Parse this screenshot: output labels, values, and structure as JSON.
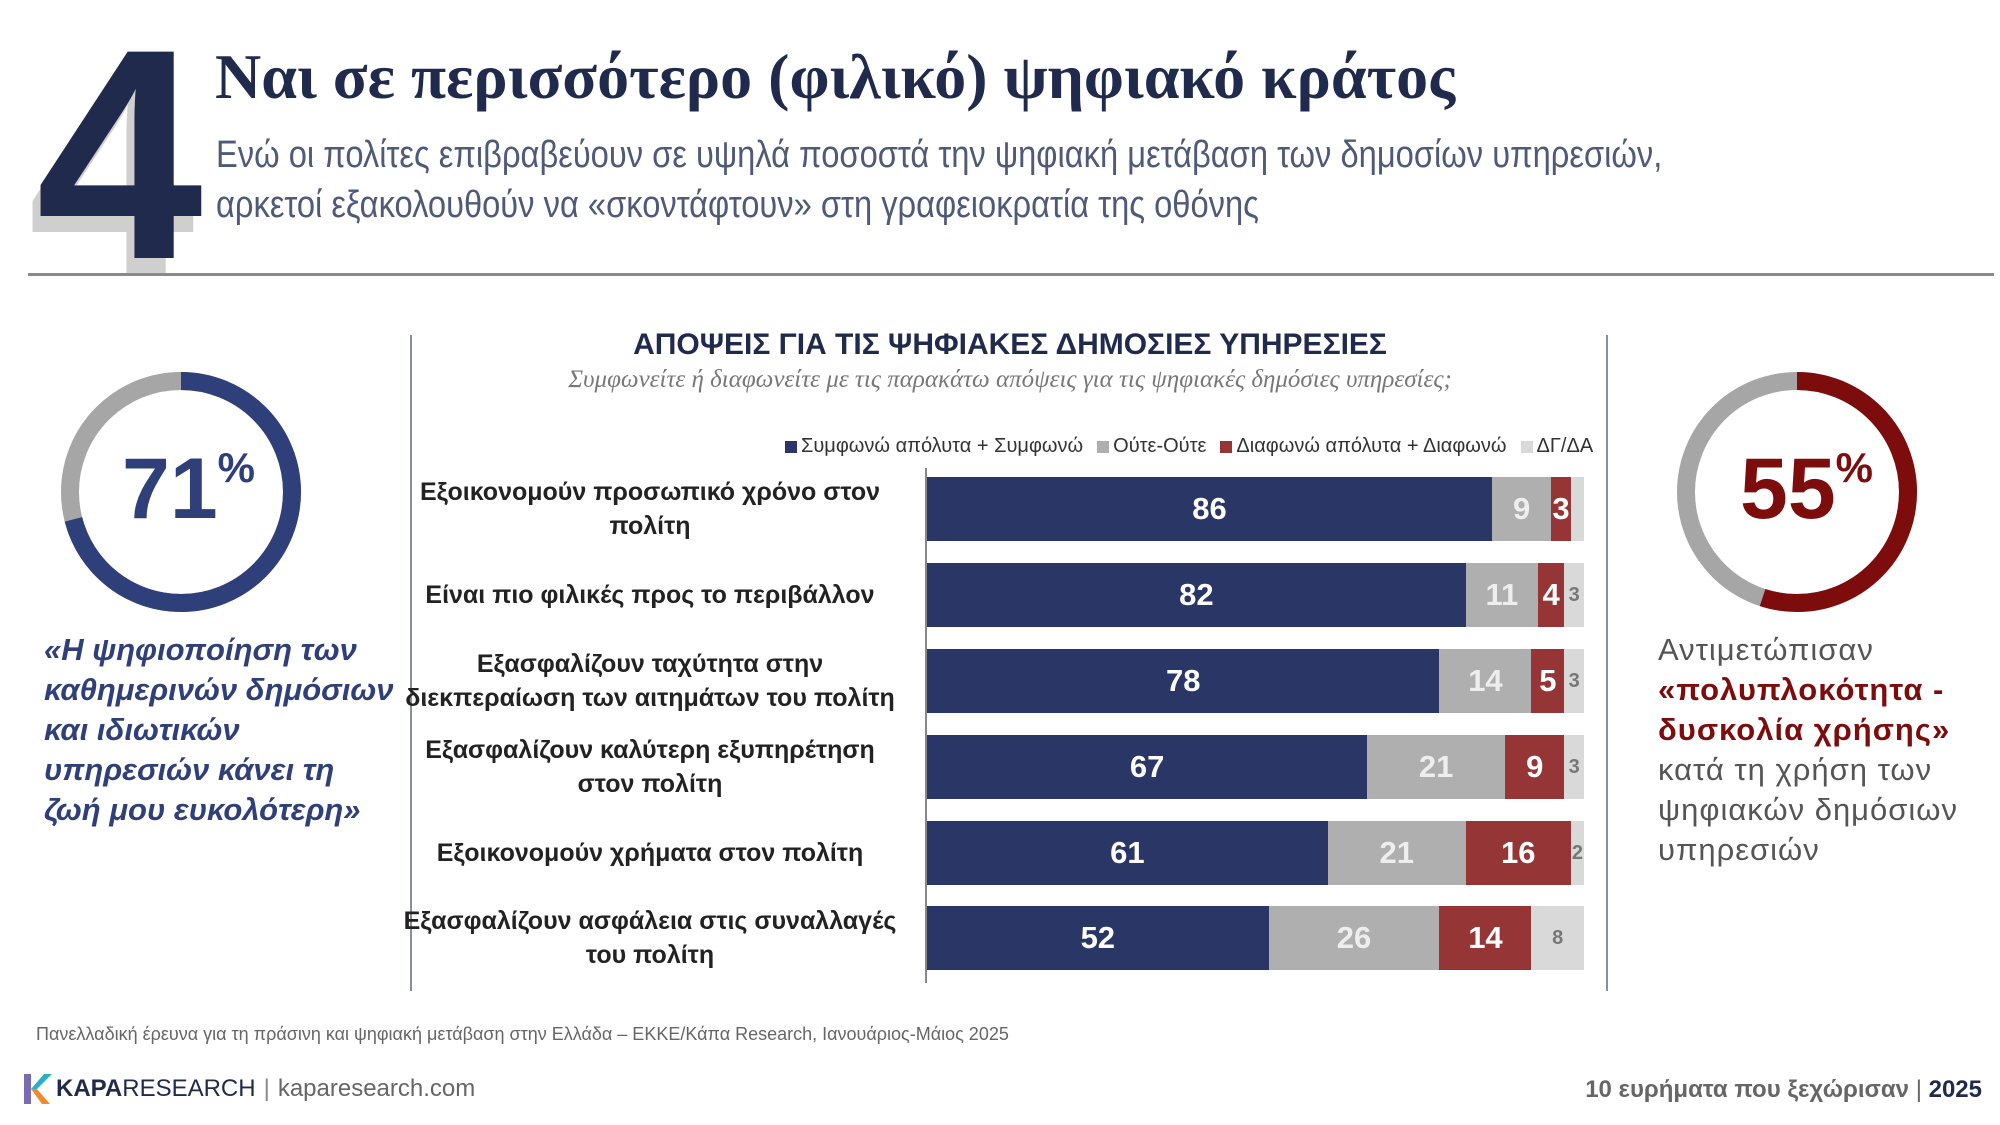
{
  "header": {
    "number": "4",
    "title": "Ναι σε περισσότερο (φιλικό) ψηφιακό κράτος",
    "subtitle": "Ενώ οι πολίτες επιβραβεύουν σε υψηλά ποσοστά την ψηφιακή μετάβαση των δημοσίων υπηρεσιών, αρκετοί εξακολουθούν να «σκοντάφτουν» στη γραφειοκρατία της οθόνης"
  },
  "left_stat": {
    "value": "71",
    "unit": "%",
    "fraction": 0.71,
    "color": "#2f3f7a",
    "quote": "«Η ψηφιοποίηση των καθημερινών δημόσιων και ιδιωτικών υπηρεσιών κάνει τη ζωή μου ευκολότερη»"
  },
  "right_stat": {
    "value": "55",
    "unit": "%",
    "fraction": 0.55,
    "color": "#7d0c0c",
    "text_before": "Αντιμετώπισαν",
    "text_bold": "«πολυπλοκότητα - δυσκολία χρήσης»",
    "text_after": "κατά τη χρήση των ψηφιακών δημόσιων υπηρεσιών"
  },
  "chart_data": {
    "type": "bar",
    "orientation": "horizontal-stacked",
    "title": "ΑΠΟΨΕΙΣ ΓΙΑ ΤΙΣ ΨΗΦΙΑΚΕΣ ΔΗΜΟΣΙΕΣ ΥΠΗΡΕΣΙΕΣ",
    "subtitle": "Συμφωνείτε ή διαφωνείτε με τις παρακάτω απόψεις για τις ψηφιακές δημόσιες υπηρεσίες;",
    "legend_position": "top",
    "categories": [
      "Εξοικονομούν προσωπικό χρόνο στον πολίτη",
      "Είναι πιο φιλικές προς το περιβάλλον",
      "Εξασφαλίζουν ταχύτητα στην διεκπεραίωση των αιτημάτων του πολίτη",
      "Εξασφαλίζουν καλύτερη εξυπηρέτηση στον πολίτη",
      "Εξοικονομούν χρήματα στον πολίτη",
      "Εξασφαλίζουν ασφάλεια στις συναλλαγές του πολίτη"
    ],
    "series": [
      {
        "name": "Συμφωνώ απόλυτα + Συμφωνώ",
        "color": "#2a3766",
        "values": [
          86,
          82,
          78,
          67,
          61,
          52
        ]
      },
      {
        "name": "Ούτε-Ούτε",
        "color": "#afafaf",
        "values": [
          9,
          11,
          14,
          21,
          21,
          26
        ]
      },
      {
        "name": "Διαφωνώ απόλυτα + Διαφωνώ",
        "color": "#963535",
        "values": [
          3,
          4,
          5,
          9,
          16,
          14
        ]
      },
      {
        "name": "ΔΓ/ΔΑ",
        "color": "#d9d9d9",
        "values": [
          2,
          3,
          3,
          3,
          2,
          8
        ],
        "labels_shown": [
          false,
          true,
          true,
          true,
          true,
          true
        ]
      }
    ]
  },
  "footer": {
    "source": "Πανελλαδική έρευνα για τη πράσινη και ψηφιακή μετάβαση στην Ελλάδα – ΕΚΚΕ/Κάπα Research, Ιανουάριος-Μάιος 2025",
    "brand_bold": "KAPA",
    "brand_regular": "RESEARCH",
    "website": "kaparesearch.com",
    "tagline": "10 ευρήματα που ξεχώρισαν",
    "year": "2025"
  }
}
